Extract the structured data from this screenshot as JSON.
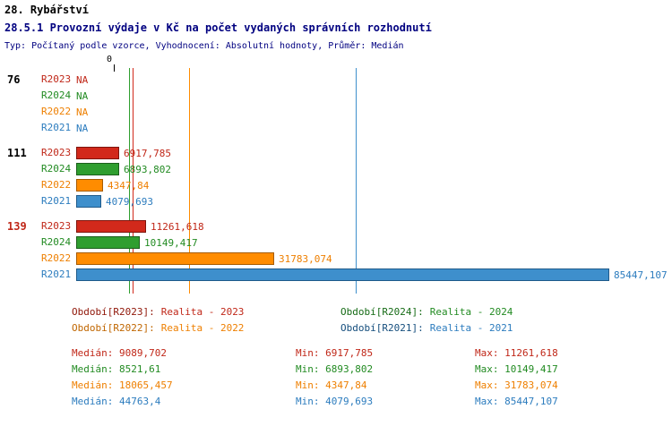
{
  "title": "28. Rybářství",
  "subtitle": "28.5.1 Provozní výdaje v Kč na počet vydaných správních rozhodnutí",
  "meta": "Typ: Počítaný podle vzorce, Vyhodnocení: Absolutní hodnoty, Průměr: Medián",
  "chart_data": {
    "type": "bar",
    "orientation": "horizontal",
    "value_unit": "Kč",
    "axis": {
      "zero_label": "0",
      "origin_value": 0
    },
    "series": [
      {
        "id": "R2023",
        "label": "R2023",
        "color": "#D2291B",
        "border_color": "#7E140C",
        "text_color": "#C02718",
        "median": 9089.702,
        "min": 6917.785,
        "max": 11261.618
      },
      {
        "id": "R2024",
        "label": "R2024",
        "color": "#2F9E2F",
        "border_color": "#1B5E1B",
        "text_color": "#228B22",
        "median": 8521.61,
        "min": 6893.802,
        "max": 10149.417
      },
      {
        "id": "R2022",
        "label": "R2022",
        "color": "#FF8C00",
        "border_color": "#A65B00",
        "text_color": "#EE7F00",
        "median": 18065.457,
        "min": 4347.84,
        "max": 31783.074
      },
      {
        "id": "R2021",
        "label": "R2021",
        "color": "#3E8FCC",
        "border_color": "#1F5A8A",
        "text_color": "#2C7CBE",
        "median": 44763.4,
        "min": 4079.693,
        "max": 85447.107
      }
    ],
    "groups": [
      {
        "label": "76",
        "label_color": "#000000",
        "values": [
          null,
          null,
          null,
          null
        ],
        "displays": [
          "NA",
          "NA",
          "NA",
          "NA"
        ]
      },
      {
        "label": "111",
        "label_color": "#000000",
        "values": [
          6917.785,
          6893.802,
          4347.84,
          4079.693
        ],
        "displays": [
          "6917,785",
          "6893,802",
          "4347,84",
          "4079,693"
        ]
      },
      {
        "label": "139",
        "label_color": "#C02718",
        "values": [
          11261.618,
          10149.417,
          31783.074,
          85447.107
        ],
        "displays": [
          "11261,618",
          "10149,417",
          "31783,074",
          "85447,107"
        ]
      }
    ]
  },
  "legend": {
    "items": [
      {
        "series": "R2023",
        "label": "Období[R2023]:",
        "value": "Realita - 2023",
        "label_color": "#8F1507",
        "value_color": "#C02718",
        "row": 0,
        "col": 0
      },
      {
        "series": "R2024",
        "label": "Období[R2024]:",
        "value": "Realita - 2024",
        "label_color": "#166B16",
        "value_color": "#228B22",
        "row": 0,
        "col": 1
      },
      {
        "series": "R2022",
        "label": "Období[R2022]:",
        "value": "Realita - 2022",
        "label_color": "#C06600",
        "value_color": "#EE7F00",
        "row": 1,
        "col": 0
      },
      {
        "series": "R2021",
        "label": "Období[R2021]:",
        "value": "Realita - 2021",
        "label_color": "#154E7D",
        "value_color": "#2C7CBE",
        "row": 1,
        "col": 1
      }
    ]
  },
  "stats": {
    "rows": [
      {
        "series": "R2023",
        "median": "Medián: 9089,702",
        "min": "Min: 6917,785",
        "max": "Max: 11261,618",
        "color": "#C02718"
      },
      {
        "series": "R2024",
        "median": "Medián: 8521,61",
        "min": "Min: 6893,802",
        "max": "Max: 10149,417",
        "color": "#228B22"
      },
      {
        "series": "R2022",
        "median": "Medián: 18065,457",
        "min": "Min: 4347,84",
        "max": "Max: 31783,074",
        "color": "#EE7F00"
      },
      {
        "series": "R2021",
        "median": "Medián: 44763,4",
        "min": "Min: 4079,693",
        "max": "Max: 85447,107",
        "color": "#2C7CBE"
      }
    ]
  }
}
